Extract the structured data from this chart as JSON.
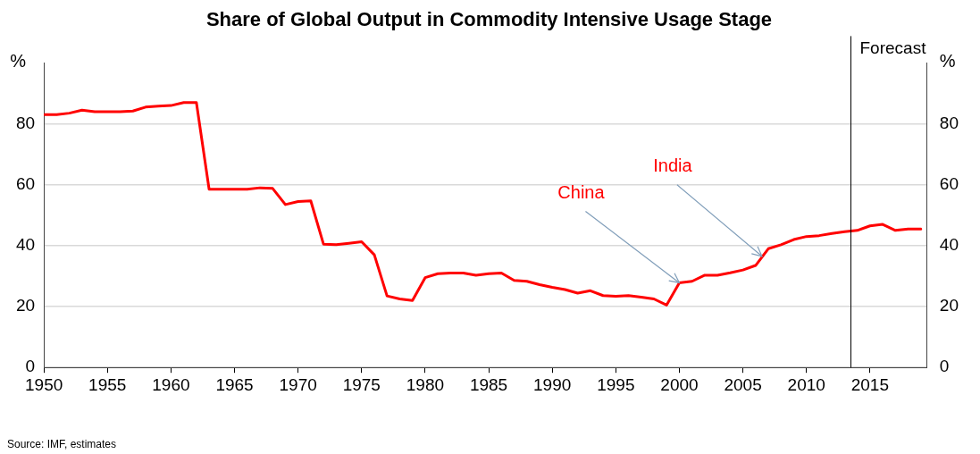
{
  "chart_data": {
    "type": "line",
    "title": "Share of Global Output in Commodity Intensive Usage Stage",
    "ylabel": "%",
    "y2label": "%",
    "x": [
      1950,
      1951,
      1952,
      1953,
      1954,
      1955,
      1956,
      1957,
      1958,
      1959,
      1960,
      1961,
      1962,
      1963,
      1964,
      1965,
      1966,
      1967,
      1968,
      1969,
      1970,
      1971,
      1972,
      1973,
      1974,
      1975,
      1976,
      1977,
      1978,
      1979,
      1980,
      1981,
      1982,
      1983,
      1984,
      1985,
      1986,
      1987,
      1988,
      1989,
      1990,
      1991,
      1992,
      1993,
      1994,
      1995,
      1996,
      1997,
      1998,
      1999,
      2000,
      2001,
      2002,
      2003,
      2004,
      2005,
      2006,
      2007,
      2008,
      2009,
      2010,
      2011,
      2012,
      2013,
      2014,
      2015,
      2016,
      2017,
      2018,
      2019
    ],
    "series": [
      {
        "color": "#ff0000",
        "values": [
          83,
          83,
          83.5,
          84.5,
          84,
          84,
          84,
          84.2,
          85.5,
          85.8,
          86,
          87,
          87,
          58.5,
          58.5,
          58.5,
          58.5,
          59,
          58.8,
          53.5,
          54.5,
          54.7,
          40.5,
          40.3,
          40.8,
          41.3,
          37,
          23.5,
          22.5,
          22,
          29.5,
          30.8,
          31,
          31,
          30.3,
          30.8,
          31,
          28.6,
          28.3,
          27.2,
          26.3,
          25.6,
          24.4,
          25.2,
          23.6,
          23.4,
          23.6,
          23.1,
          22.5,
          20.5,
          27.8,
          28.3,
          30.3,
          30.3,
          31.1,
          32,
          33.5,
          39,
          40.3,
          42,
          43,
          43.3,
          44,
          44.6,
          45,
          46.5,
          47,
          45,
          45.5,
          45.5
        ]
      }
    ],
    "xlim": [
      1950,
      2019.5
    ],
    "xticks": [
      1950,
      1955,
      1960,
      1965,
      1970,
      1975,
      1980,
      1985,
      1990,
      1995,
      2000,
      2005,
      2010,
      2015
    ],
    "ylim": [
      0,
      100
    ],
    "yticks": [
      0,
      20,
      40,
      60,
      80
    ],
    "y2lim": [
      0,
      100
    ],
    "y2ticks": [
      0,
      20,
      40,
      60,
      80
    ],
    "grid": "y",
    "legend": false,
    "marker": "none",
    "line_style": "solid",
    "ref_lines": [
      {
        "axis": "x",
        "value": 2013.5,
        "label": "Forecast",
        "color": "#000000"
      }
    ],
    "annotations": [
      {
        "text": "China",
        "x": 2000,
        "y": 27.8
      },
      {
        "text": "India",
        "x": 2006.5,
        "y": 36.5
      },
      "Source: IMF, estimates"
    ]
  }
}
